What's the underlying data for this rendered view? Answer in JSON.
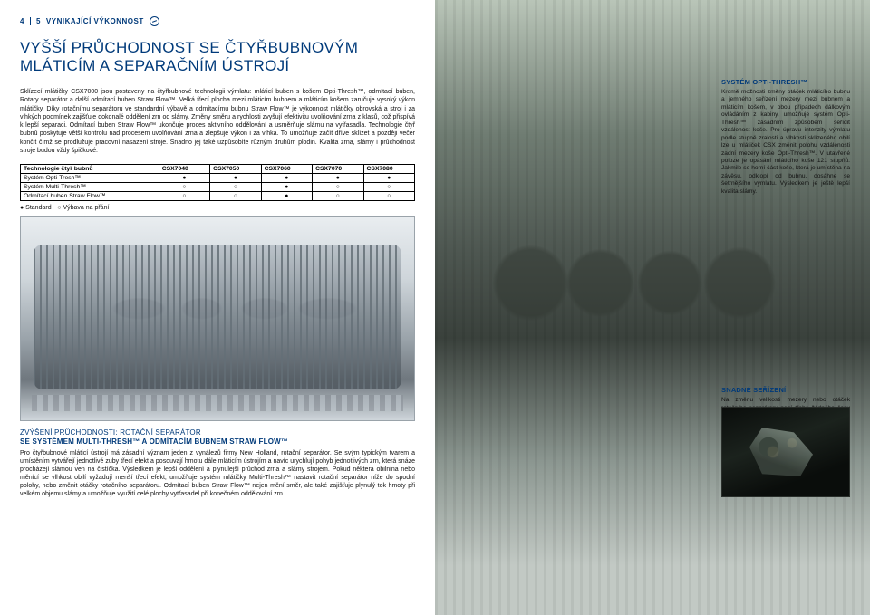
{
  "header": {
    "page_left": "4",
    "page_right": "5",
    "section": "VYNIKAJÍCÍ VÝKONNOST"
  },
  "title_line1": "VYŠŠÍ PRŮCHODNOST SE ČTYŘBUBNOVÝM",
  "title_line2": "MLÁTICÍM A SEPARAČNÍM ÚSTROJÍ",
  "intro": "Sklízecí mlátičky CSX7000 jsou postaveny na čtyřbubnové technologii výmlatu: mláticí buben s košem Opti-Thresh™, odmítací buben, Rotary separátor a další odmítací buben Straw Flow™. Velká třecí plocha mezi mláticím bubnem a mláticím košem zaručuje vysoký výkon mlátičky. Díky rotačnímu separátoru ve standardní výbavě a odmítacímu bubnu Straw Flow™ je výkonnost mlátičky obrovská a stroj i za vlhkých podmínek zajišťuje dokonalé oddělení zrn od slámy. Změny směru a rychlosti zvyšují efektivitu uvolňování zrna z klasů, což přispívá k lepší separaci. Odmítací buben Straw Flow™ ukončuje proces aktivního oddělování a usměrňuje slámu na vytřasadla. Technologie čtyř bubnů poskytuje větší kontrolu nad procesem uvolňování zrna a zlepšuje výkon i za vlhka. To umožňuje začít dříve sklízet a později večer končit čímž se prodlužuje pracovní nasazení stroje. Snadno jej také uzpůsobíte různým druhům plodin. Kvalita zrna, slámy i průchodnost stroje budou vždy špičkové.",
  "table": {
    "head": [
      "Technologie čtyř bubnů",
      "CSX7040",
      "CSX7050",
      "CSX7060",
      "CSX7070",
      "CSX7080"
    ],
    "rows": [
      [
        "Systém Opti-Tresh™",
        "●",
        "●",
        "●",
        "●",
        "●"
      ],
      [
        "Systém Multi-Thresh™",
        "○",
        "○",
        "●",
        "○",
        "○"
      ],
      [
        "Odmítací buben Straw Flow™",
        "○",
        "○",
        "●",
        "○",
        "○"
      ]
    ],
    "legend_std": "● Standard",
    "legend_opt": "○ Výbava na přání"
  },
  "sub": {
    "l1": "ZVÝŠENÍ PRŮCHODNOSTI: ROTAČNÍ SEPARÁTOR",
    "l2": "SE SYSTÉMEM MULTI-THRESH™ A ODMÍTACÍM BUBNEM STRAW FLOW™",
    "p": "Pro čtyřbubnové mláticí ústrojí má zásadní význam jeden z vynálezů firmy New Holland, rotační separátor. Se svým typickým tvarem a umístěním vytvářejí jednotlivé zuby třecí efekt a posouvají hmotu dále mláticím ústrojím a navíc urychlují pohyb jednotlivých zrn, která snáze procházejí slámou ven na čistíčka. Výsledkem je lepší oddělení a plynulejší průchod zrna a slámy strojem. Pokud některá obilnina nebo měnící se vlhkost obilí vyžadují menší třecí efekt, umožňuje systém mlátičky Multi-Thresh™ nastavit rotační separátor níže do spodní polohy, nebo změnit otáčky rotačního separátoru. Odmítací buben Straw Flow™ nejen mění směr, ale také zajišťuje plynulý tok hmoty při velkém objemu slámy a umožňuje využití celé plochy vytřasadel při konečném oddělování zrn."
  },
  "right": {
    "h1": "SYSTÉM OPTI-THRESH™",
    "p1": "Kromě možnosti změny otáček mláticího bubnu a jemného seřízení mezery mezi bubnem a mláticím košem, v obou případech dálkovým ovládáním z kabiny, umožňuje systém Opti-Thresh™ zásadním způsobem seřídit vzdálenost koše. Pro úpravu intenzity výmlatu podle stupně zralosti a vlhkosti sklízeného obilí lze u mlátiček CSX změnit polohu vzdálenosti zadní mezery koše Opti-Thresh™. V utavřené poloze je opásání mláticího koše 121 stupňů. Jakmile se horní část koše, která je umístěna na závěsu, odklopí od bubnu, dosáhne se šetrnějšího výmlatu. Výsledkem je ještě lepší kvalita slámy.",
    "h2": "SNADNÉ SEŘÍZENÍ",
    "p2": "Na změnu velikosti mezery nebo otáček rotačního separátoru není třeba žádného času ani úsilí: přístup k ovládacím pákám na pravé straně sklízecí mlátičky je snadný. Horní obrázek: páka na ovládání systému Multi-Thresh™ a napínací kladka řemene rotačního separátoru, která umožňuje změnu otáček. Spodní obrázek: páka systému Opti-Thresh™ umožňující změnu mezery mezi mláticí části koše rotačního separátoru."
  }
}
